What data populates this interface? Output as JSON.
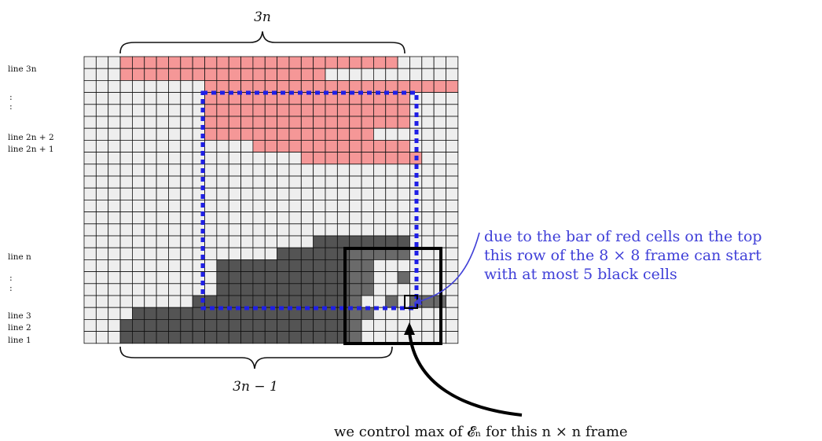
{
  "labels": {
    "line_3n": "line 3n",
    "dots_top": ":",
    "line_2n2": "line 2n + 2",
    "line_2n1": "line 2n + 1",
    "line_n": "line n",
    "dots_bottom": ":",
    "line_3": "line 3",
    "line_2": "line 2",
    "line_1": "line 1"
  },
  "braces": {
    "top": "3n",
    "bottom": "3n − 1"
  },
  "annotations": {
    "blue": [
      "due to the bar of red cells on the top",
      "this row of the 8 × 8 frame can start",
      "with at most 5 black cells"
    ],
    "black": "we control max of 𝓔ₙ for this n × n frame"
  },
  "colors": {
    "empty": "#eeeeee",
    "red": "#f59797",
    "black": "#545454",
    "black_frame": "#6a6a6a",
    "grid": "#111111",
    "blue": "#1f1fe6",
    "blue_text": "#4040d8"
  },
  "grid": {
    "rows": 24,
    "cols": 31,
    "red_row_segments": [
      [
        0,
        3,
        26
      ],
      [
        1,
        3,
        20
      ],
      [
        2,
        10,
        31
      ],
      [
        3,
        10,
        27
      ],
      [
        4,
        10,
        27
      ],
      [
        5,
        10,
        27
      ],
      [
        6,
        10,
        24
      ],
      [
        7,
        14,
        27
      ],
      [
        8,
        18,
        28
      ]
    ],
    "black_row_segments": [
      [
        15,
        19,
        27
      ],
      [
        16,
        16,
        27
      ],
      [
        17,
        11,
        24
      ],
      [
        18,
        11,
        27
      ],
      [
        19,
        11,
        24
      ],
      [
        20,
        9,
        30
      ],
      [
        21,
        4,
        25
      ],
      [
        22,
        3,
        25
      ],
      [
        23,
        3,
        23
      ]
    ],
    "white_cells": [
      [
        17,
        26
      ],
      [
        18,
        24
      ],
      [
        18,
        25
      ],
      [
        19,
        27
      ],
      [
        20,
        23
      ],
      [
        20,
        24
      ],
      [
        20,
        26
      ],
      [
        21,
        24
      ],
      [
        22,
        23
      ],
      [
        22,
        24
      ],
      [
        23,
        23
      ],
      [
        23,
        24
      ],
      [
        23,
        25
      ]
    ]
  }
}
